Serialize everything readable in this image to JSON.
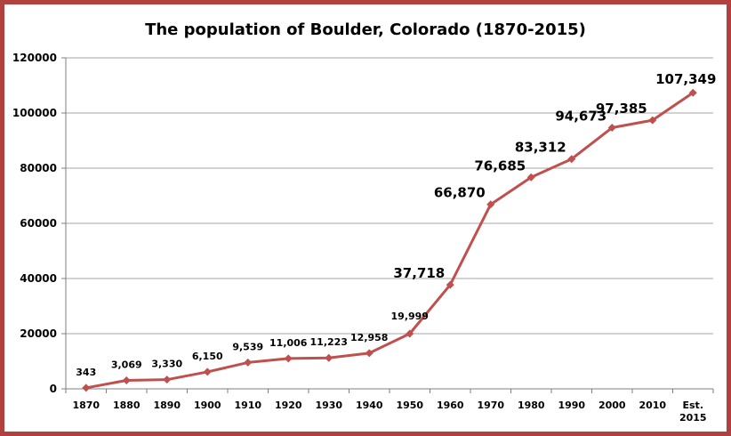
{
  "chart_data": {
    "type": "line",
    "title": "The population of Boulder, Colorado (1870-2015)",
    "xlabel": "",
    "ylabel": "",
    "ylim": [
      0,
      120000
    ],
    "yticks": [
      "0",
      "20000",
      "40000",
      "60000",
      "80000",
      "100000",
      "120000"
    ],
    "grid": true,
    "legend": "none",
    "categories": [
      "1870",
      "1880",
      "1890",
      "1900",
      "1910",
      "1920",
      "1930",
      "1940",
      "1950",
      "1960",
      "1970",
      "1980",
      "1990",
      "2000",
      "2010",
      "Est. 2015"
    ],
    "series": [
      {
        "color": "#c0504d",
        "values": [
          343,
          3069,
          3330,
          6150,
          9539,
          11006,
          11223,
          12958,
          19999,
          37718,
          66870,
          76685,
          83312,
          94673,
          97385,
          107349
        ],
        "data_labels": [
          "343",
          "3,069",
          "3,330",
          "6,150",
          "9,539",
          "11,006",
          "11,223",
          "12,958",
          "19,999",
          "37,718",
          "66,870",
          "76,685",
          "83,312",
          "94,673",
          "97,385",
          "107,349"
        ]
      }
    ]
  },
  "colors": {
    "frame": "#b0413e",
    "line": "#c0504d",
    "grid": "#a6a6a6"
  }
}
